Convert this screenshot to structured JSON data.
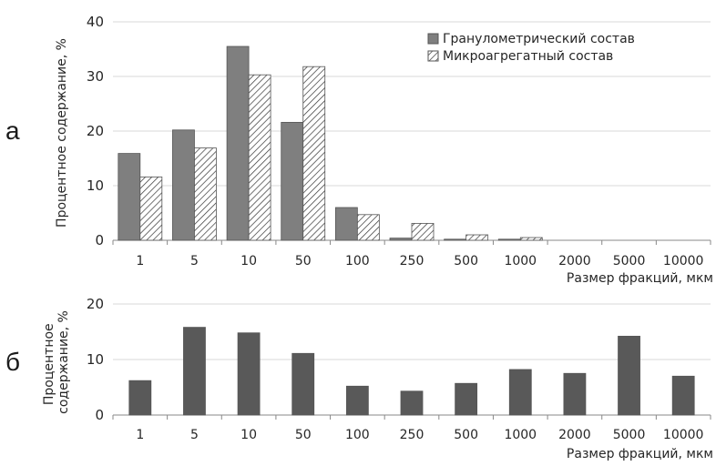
{
  "chart_data": [
    {
      "type": "bar",
      "panel_label": "а",
      "categories": [
        "1",
        "5",
        "10",
        "50",
        "100",
        "250",
        "500",
        "1000",
        "2000",
        "5000",
        "10000"
      ],
      "series": [
        {
          "name": "Гранулометрический состав",
          "values": [
            15.9,
            20.2,
            35.5,
            21.6,
            6.0,
            0.4,
            0.2,
            0.2,
            0,
            0,
            0
          ],
          "color": "#7f7f7f",
          "pattern": "solid"
        },
        {
          "name": "Микроагрегатный состав",
          "values": [
            11.6,
            16.9,
            30.3,
            31.8,
            4.7,
            3.1,
            1.0,
            0.5,
            0,
            0,
            0
          ],
          "color": "#ffffff",
          "pattern": "hatched"
        }
      ],
      "xlabel": "Размер фракций, мкм",
      "ylabel": "Процентное содержание, %",
      "ylim": [
        0,
        40
      ],
      "yticks": [
        "0",
        "10",
        "20",
        "30",
        "40"
      ],
      "grid": true,
      "legend": "top-right"
    },
    {
      "type": "bar",
      "panel_label": "б",
      "categories": [
        "1",
        "5",
        "10",
        "50",
        "100",
        "250",
        "500",
        "1000",
        "2000",
        "5000",
        "10000"
      ],
      "series": [
        {
          "values": [
            6.2,
            15.8,
            14.8,
            11.1,
            5.2,
            4.3,
            5.7,
            8.2,
            7.5,
            14.2,
            7.0
          ],
          "color": "#595959"
        }
      ],
      "xlabel": "Размер фракций, мкм",
      "ylabel": "Процентное содержание, %",
      "ylim": [
        0,
        20
      ],
      "yticks": [
        "0",
        "10",
        "20"
      ],
      "grid": true
    }
  ]
}
